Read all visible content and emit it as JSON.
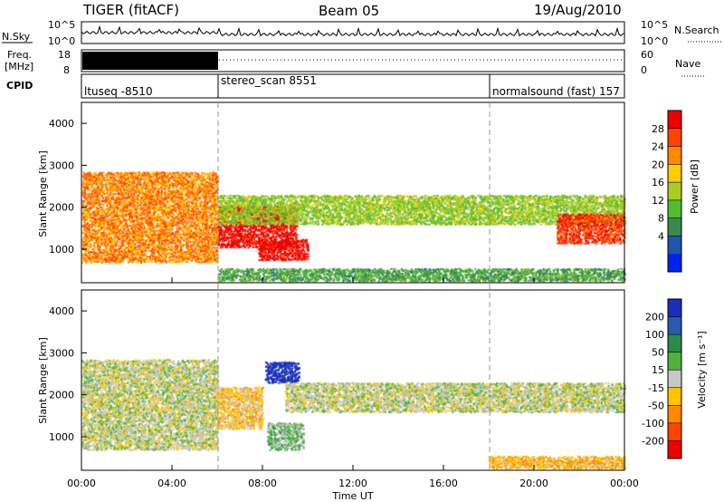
{
  "header": {
    "radar": "TIGER (fitACF)",
    "beam": "Beam 05",
    "date": "19/Aug/2010"
  },
  "noise_panel": {
    "left_label": "N.Sky",
    "right_label": "N.Search",
    "left_ticks": [
      "10^5",
      "10^0"
    ],
    "right_ticks": [
      "10^5",
      "10^0"
    ]
  },
  "freq_panel": {
    "left_label_line1": "Freq.",
    "left_label_line2": "[MHz]",
    "right_label": "Nave",
    "left_ticks": [
      "18",
      "8"
    ],
    "right_ticks": [
      "60",
      "0"
    ]
  },
  "cpid_panel": {
    "label": "CPID",
    "programs": [
      {
        "name": "ltuseq -8510",
        "start_hour": 0
      },
      {
        "name": "stereo_scan 8551",
        "start_hour": 6
      },
      {
        "name": "normalsound (fast) 157",
        "start_hour": 18
      }
    ]
  },
  "x_axis": {
    "label": "Time UT",
    "range_hours": [
      0,
      24
    ],
    "tick_labels": [
      "00:00",
      "04:00",
      "08:00",
      "12:00",
      "16:00",
      "20:00",
      "00:00"
    ]
  },
  "power_panel": {
    "ylabel": "Slant Range [km]",
    "yticks": [
      "1000",
      "2000",
      "3000",
      "4000"
    ],
    "colorbar_label": "Power [dB]",
    "colorbar_ticks": [
      "4",
      "8",
      "12",
      "16",
      "20",
      "24",
      "28"
    ],
    "colors": [
      "#0022ee",
      "#2255aa",
      "#3a8a4a",
      "#55bb33",
      "#aacc22",
      "#ffcc00",
      "#ff8800",
      "#ff4400",
      "#ee0000"
    ]
  },
  "velocity_panel": {
    "ylabel": "Slant Range [km]",
    "yticks": [
      "1000",
      "2000",
      "3000",
      "4000"
    ],
    "colorbar_label": "Velocity [m s⁻¹]",
    "colorbar_ticks": [
      "200",
      "100",
      "50",
      "15",
      "-15",
      "-50",
      "-100",
      "-200"
    ],
    "colors": [
      "#1a2ebb",
      "#2a5ab0",
      "#2e8a4c",
      "#4fb23c",
      "#c8c8c8",
      "#ffc400",
      "#ff8800",
      "#ff4400",
      "#ee0000"
    ]
  },
  "chart_data": [
    {
      "type": "heatmap",
      "title": "Beam 05",
      "xlabel": "Time UT",
      "ylabel": "Slant Range [km]",
      "xlim_hours": [
        0,
        24
      ],
      "ylim": [
        200,
        4500
      ],
      "colorbar": "Power [dB]",
      "clim": [
        0,
        30
      ],
      "regions": [
        {
          "t0": 0.0,
          "t1": 6.0,
          "r0": 700,
          "r1": 2850,
          "value": 22
        },
        {
          "t0": 6.0,
          "t1": 9.5,
          "r0": 1050,
          "r1": 2050,
          "value": 29
        },
        {
          "t0": 7.8,
          "t1": 10.0,
          "r0": 750,
          "r1": 1250,
          "value": 29
        },
        {
          "t0": 6.0,
          "t1": 24.0,
          "r0": 1600,
          "r1": 2300,
          "value": 14
        },
        {
          "t0": 21.0,
          "t1": 24.0,
          "r0": 1150,
          "r1": 1850,
          "value": 26
        },
        {
          "t0": 6.0,
          "t1": 24.0,
          "r0": 250,
          "r1": 550,
          "value": 10
        }
      ]
    },
    {
      "type": "heatmap",
      "title": "",
      "xlabel": "Time UT",
      "ylabel": "Slant Range [km]",
      "xlim_hours": [
        0,
        24
      ],
      "ylim": [
        200,
        4500
      ],
      "colorbar": "Velocity [m s⁻¹]",
      "clim": [
        -200,
        200
      ],
      "regions": [
        {
          "t0": 0.0,
          "t1": 6.0,
          "r0": 700,
          "r1": 2850,
          "value": 0
        },
        {
          "t0": 8.1,
          "t1": 9.6,
          "r0": 2300,
          "r1": 2800,
          "value": 200
        },
        {
          "t0": 8.2,
          "t1": 9.8,
          "r0": 700,
          "r1": 1350,
          "value": 40
        },
        {
          "t0": 6.0,
          "t1": 8.0,
          "r0": 1200,
          "r1": 2200,
          "value": -40
        },
        {
          "t0": 9.0,
          "t1": 24.0,
          "r0": 1600,
          "r1": 2300,
          "value": 0
        },
        {
          "t0": 18.0,
          "t1": 24.0,
          "r0": 250,
          "r1": 550,
          "value": -60
        }
      ]
    }
  ]
}
